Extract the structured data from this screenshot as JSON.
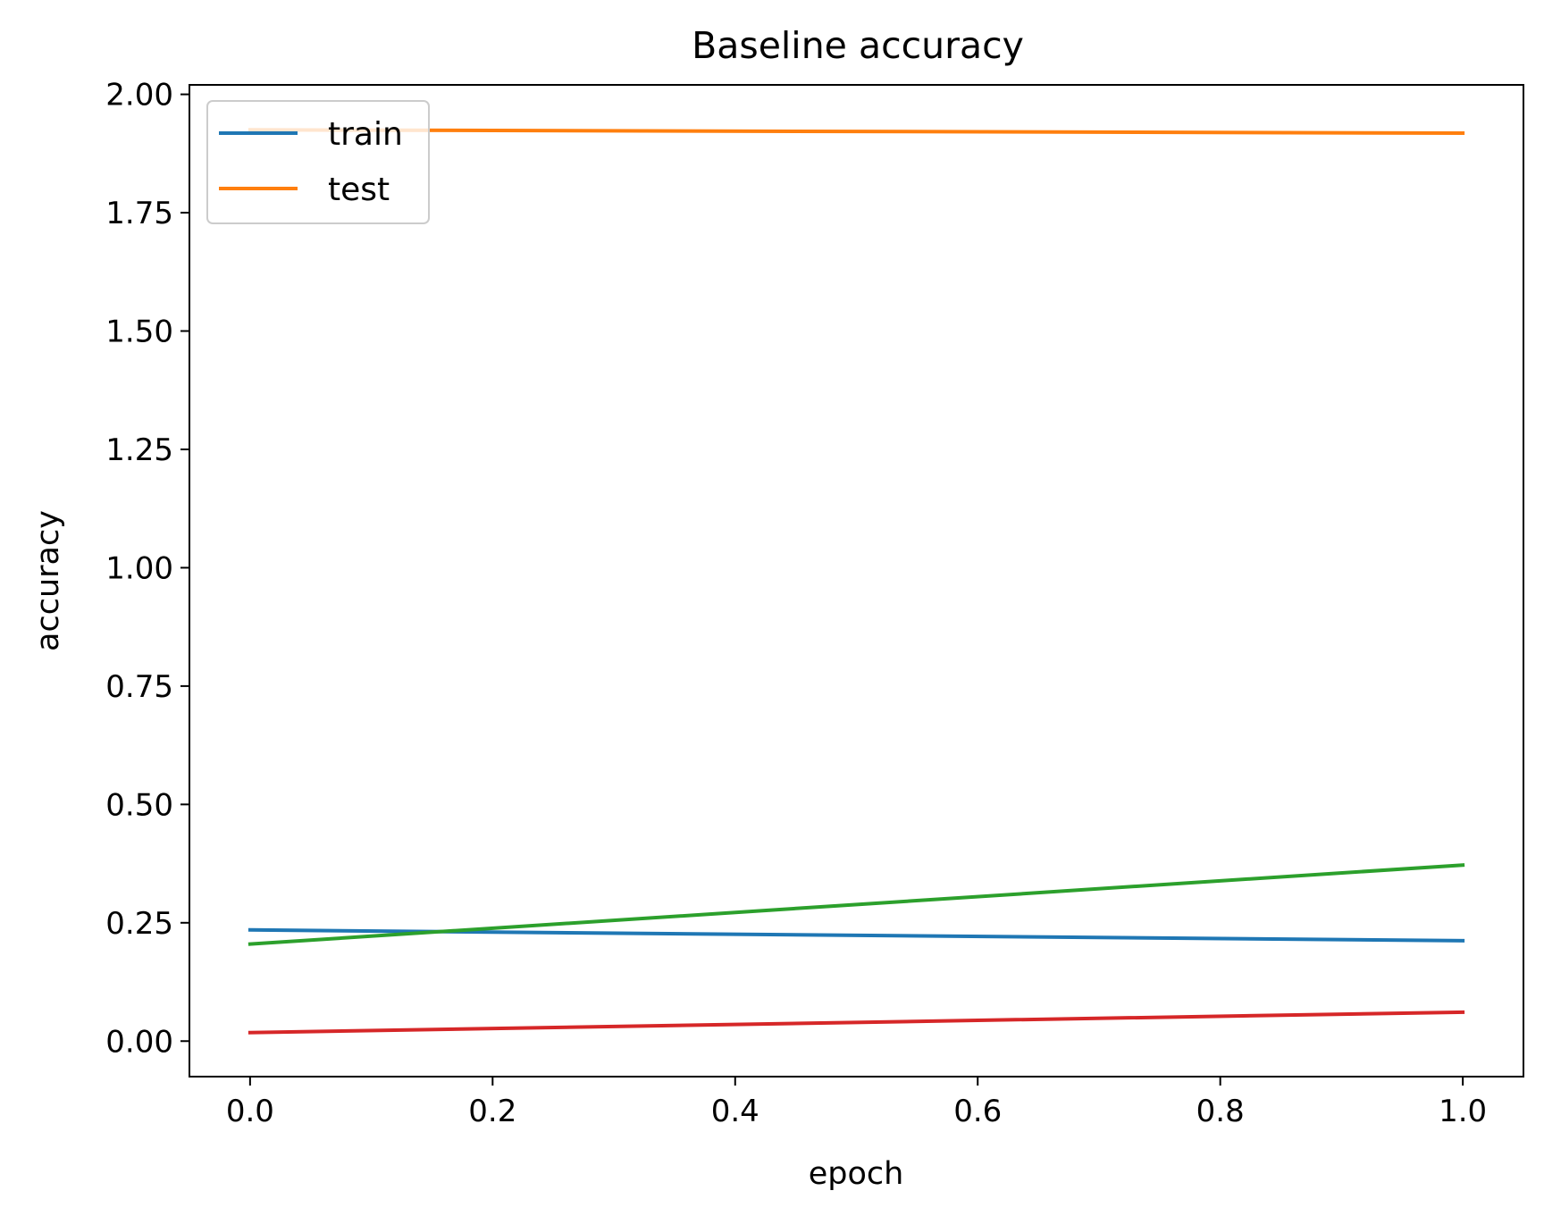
{
  "chart_data": {
    "type": "line",
    "title": "Baseline accuracy",
    "xlabel": "epoch",
    "ylabel": "accuracy",
    "xlim": [
      -0.05,
      1.05
    ],
    "ylim": [
      -0.075,
      2.02
    ],
    "xticks": [
      0.0,
      0.2,
      0.4,
      0.6,
      0.8,
      1.0
    ],
    "xtick_labels": [
      "0.0",
      "0.2",
      "0.4",
      "0.6",
      "0.8",
      "1.0"
    ],
    "yticks": [
      0.0,
      0.25,
      0.5,
      0.75,
      1.0,
      1.25,
      1.5,
      1.75,
      2.0
    ],
    "ytick_labels": [
      "0.00",
      "0.25",
      "0.50",
      "0.75",
      "1.00",
      "1.25",
      "1.50",
      "1.75",
      "2.00"
    ],
    "grid": false,
    "legend": {
      "position": "upper-left",
      "entries": [
        "train",
        "test"
      ]
    },
    "series": [
      {
        "name": "train",
        "color": "#1f77b4",
        "x": [
          0.0,
          1.0
        ],
        "y": [
          0.235,
          0.212
        ]
      },
      {
        "name": "test",
        "color": "#ff7f0e",
        "x": [
          0.0,
          1.0
        ],
        "y": [
          1.925,
          1.918
        ]
      },
      {
        "color": "#2ca02c",
        "x": [
          0.0,
          1.0
        ],
        "y": [
          0.205,
          0.372
        ]
      },
      {
        "color": "#d62728",
        "x": [
          0.0,
          1.0
        ],
        "y": [
          0.018,
          0.061
        ]
      }
    ]
  }
}
